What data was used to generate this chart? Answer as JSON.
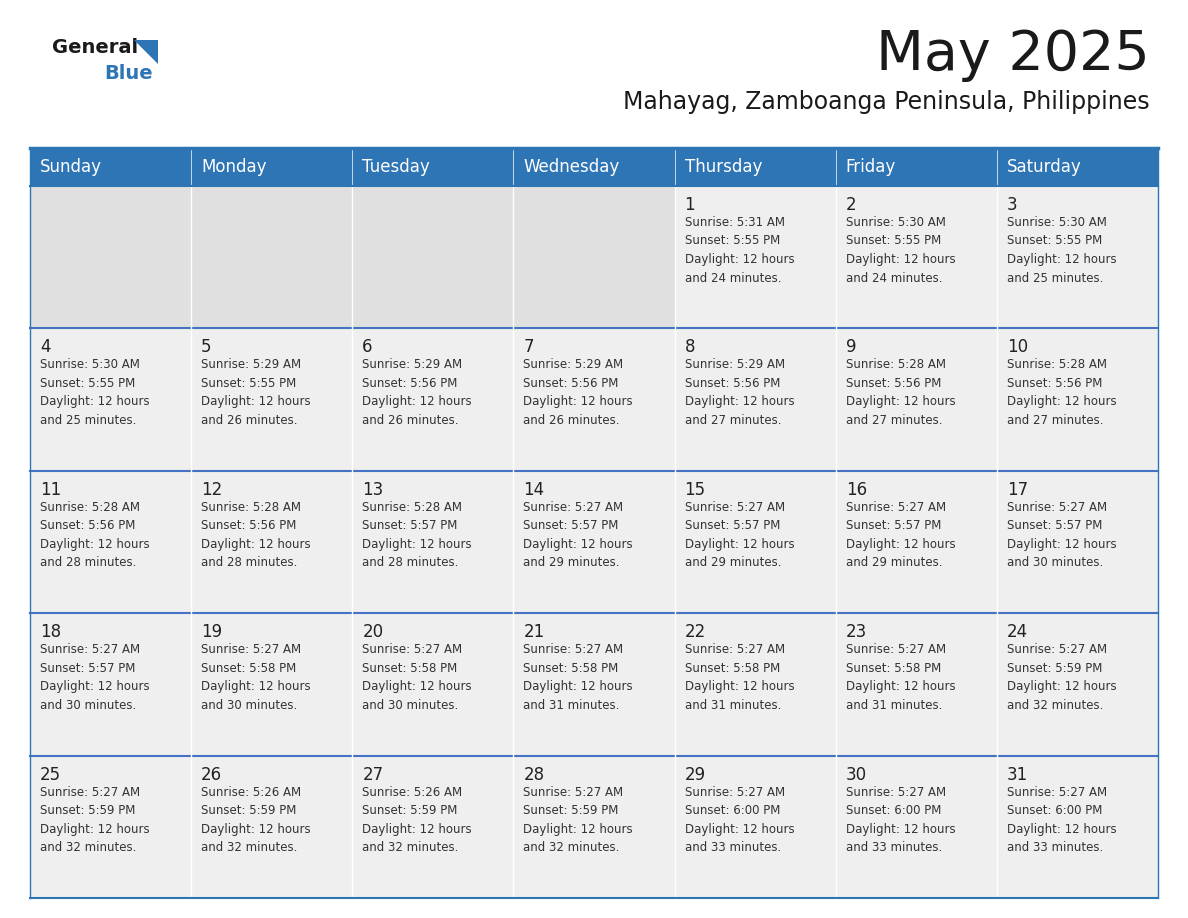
{
  "title": "May 2025",
  "subtitle": "Mahayag, Zamboanga Peninsula, Philippines",
  "days_of_week": [
    "Sunday",
    "Monday",
    "Tuesday",
    "Wednesday",
    "Thursday",
    "Friday",
    "Saturday"
  ],
  "header_bg": "#2E75B6",
  "header_text": "#FFFFFF",
  "row_bg": "#EFEFEF",
  "cell_separator": "#FFFFFF",
  "border_color": "#2E75B6",
  "row_border_color": "#4472C4",
  "day_number_color": "#222222",
  "cell_text_color": "#333333",
  "title_color": "#1a1a1a",
  "subtitle_color": "#1a1a1a",
  "logo_general_color": "#1a1a1a",
  "logo_blue_color": "#2E75B6",
  "calendar": [
    [
      {
        "day": null,
        "info": ""
      },
      {
        "day": null,
        "info": ""
      },
      {
        "day": null,
        "info": ""
      },
      {
        "day": null,
        "info": ""
      },
      {
        "day": 1,
        "info": "Sunrise: 5:31 AM\nSunset: 5:55 PM\nDaylight: 12 hours\nand 24 minutes."
      },
      {
        "day": 2,
        "info": "Sunrise: 5:30 AM\nSunset: 5:55 PM\nDaylight: 12 hours\nand 24 minutes."
      },
      {
        "day": 3,
        "info": "Sunrise: 5:30 AM\nSunset: 5:55 PM\nDaylight: 12 hours\nand 25 minutes."
      }
    ],
    [
      {
        "day": 4,
        "info": "Sunrise: 5:30 AM\nSunset: 5:55 PM\nDaylight: 12 hours\nand 25 minutes."
      },
      {
        "day": 5,
        "info": "Sunrise: 5:29 AM\nSunset: 5:55 PM\nDaylight: 12 hours\nand 26 minutes."
      },
      {
        "day": 6,
        "info": "Sunrise: 5:29 AM\nSunset: 5:56 PM\nDaylight: 12 hours\nand 26 minutes."
      },
      {
        "day": 7,
        "info": "Sunrise: 5:29 AM\nSunset: 5:56 PM\nDaylight: 12 hours\nand 26 minutes."
      },
      {
        "day": 8,
        "info": "Sunrise: 5:29 AM\nSunset: 5:56 PM\nDaylight: 12 hours\nand 27 minutes."
      },
      {
        "day": 9,
        "info": "Sunrise: 5:28 AM\nSunset: 5:56 PM\nDaylight: 12 hours\nand 27 minutes."
      },
      {
        "day": 10,
        "info": "Sunrise: 5:28 AM\nSunset: 5:56 PM\nDaylight: 12 hours\nand 27 minutes."
      }
    ],
    [
      {
        "day": 11,
        "info": "Sunrise: 5:28 AM\nSunset: 5:56 PM\nDaylight: 12 hours\nand 28 minutes."
      },
      {
        "day": 12,
        "info": "Sunrise: 5:28 AM\nSunset: 5:56 PM\nDaylight: 12 hours\nand 28 minutes."
      },
      {
        "day": 13,
        "info": "Sunrise: 5:28 AM\nSunset: 5:57 PM\nDaylight: 12 hours\nand 28 minutes."
      },
      {
        "day": 14,
        "info": "Sunrise: 5:27 AM\nSunset: 5:57 PM\nDaylight: 12 hours\nand 29 minutes."
      },
      {
        "day": 15,
        "info": "Sunrise: 5:27 AM\nSunset: 5:57 PM\nDaylight: 12 hours\nand 29 minutes."
      },
      {
        "day": 16,
        "info": "Sunrise: 5:27 AM\nSunset: 5:57 PM\nDaylight: 12 hours\nand 29 minutes."
      },
      {
        "day": 17,
        "info": "Sunrise: 5:27 AM\nSunset: 5:57 PM\nDaylight: 12 hours\nand 30 minutes."
      }
    ],
    [
      {
        "day": 18,
        "info": "Sunrise: 5:27 AM\nSunset: 5:57 PM\nDaylight: 12 hours\nand 30 minutes."
      },
      {
        "day": 19,
        "info": "Sunrise: 5:27 AM\nSunset: 5:58 PM\nDaylight: 12 hours\nand 30 minutes."
      },
      {
        "day": 20,
        "info": "Sunrise: 5:27 AM\nSunset: 5:58 PM\nDaylight: 12 hours\nand 30 minutes."
      },
      {
        "day": 21,
        "info": "Sunrise: 5:27 AM\nSunset: 5:58 PM\nDaylight: 12 hours\nand 31 minutes."
      },
      {
        "day": 22,
        "info": "Sunrise: 5:27 AM\nSunset: 5:58 PM\nDaylight: 12 hours\nand 31 minutes."
      },
      {
        "day": 23,
        "info": "Sunrise: 5:27 AM\nSunset: 5:58 PM\nDaylight: 12 hours\nand 31 minutes."
      },
      {
        "day": 24,
        "info": "Sunrise: 5:27 AM\nSunset: 5:59 PM\nDaylight: 12 hours\nand 32 minutes."
      }
    ],
    [
      {
        "day": 25,
        "info": "Sunrise: 5:27 AM\nSunset: 5:59 PM\nDaylight: 12 hours\nand 32 minutes."
      },
      {
        "day": 26,
        "info": "Sunrise: 5:26 AM\nSunset: 5:59 PM\nDaylight: 12 hours\nand 32 minutes."
      },
      {
        "day": 27,
        "info": "Sunrise: 5:26 AM\nSunset: 5:59 PM\nDaylight: 12 hours\nand 32 minutes."
      },
      {
        "day": 28,
        "info": "Sunrise: 5:27 AM\nSunset: 5:59 PM\nDaylight: 12 hours\nand 32 minutes."
      },
      {
        "day": 29,
        "info": "Sunrise: 5:27 AM\nSunset: 6:00 PM\nDaylight: 12 hours\nand 33 minutes."
      },
      {
        "day": 30,
        "info": "Sunrise: 5:27 AM\nSunset: 6:00 PM\nDaylight: 12 hours\nand 33 minutes."
      },
      {
        "day": 31,
        "info": "Sunrise: 5:27 AM\nSunset: 6:00 PM\nDaylight: 12 hours\nand 33 minutes."
      }
    ]
  ]
}
